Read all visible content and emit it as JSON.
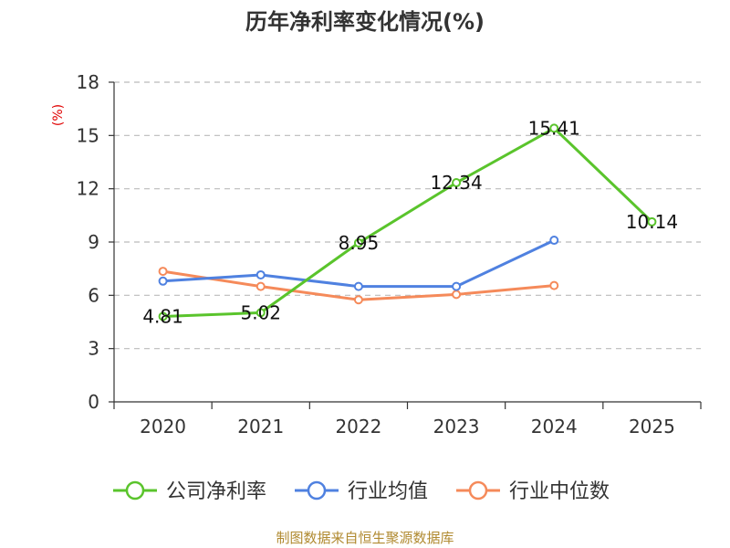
{
  "chart_data": {
    "type": "line",
    "title": "历年净利率变化情况(%)",
    "ylabel": "(%)",
    "categories": [
      "2020",
      "2021",
      "2022",
      "2023",
      "2024",
      "2025"
    ],
    "ylim": [
      0,
      18
    ],
    "yticks": [
      0,
      3,
      6,
      9,
      12,
      15,
      18
    ],
    "grid": true,
    "legend_position": "bottom",
    "series": [
      {
        "name": "公司净利率",
        "color": "#5ac42c",
        "values": [
          4.81,
          5.02,
          8.95,
          12.34,
          15.41,
          10.14
        ],
        "labels": [
          "4.81",
          "5.02",
          "8.95",
          "12.34",
          "15.41",
          "10.14"
        ],
        "show_labels": true
      },
      {
        "name": "行业均值",
        "color": "#4f81e0",
        "values": [
          6.8,
          7.15,
          6.5,
          6.5,
          9.1,
          null
        ],
        "show_labels": false
      },
      {
        "name": "行业中位数",
        "color": "#f58a5a",
        "values": [
          7.35,
          6.5,
          5.75,
          6.05,
          6.55,
          null
        ],
        "show_labels": false
      }
    ]
  },
  "footer": {
    "source": "制图数据来自恒生聚源数据库"
  }
}
